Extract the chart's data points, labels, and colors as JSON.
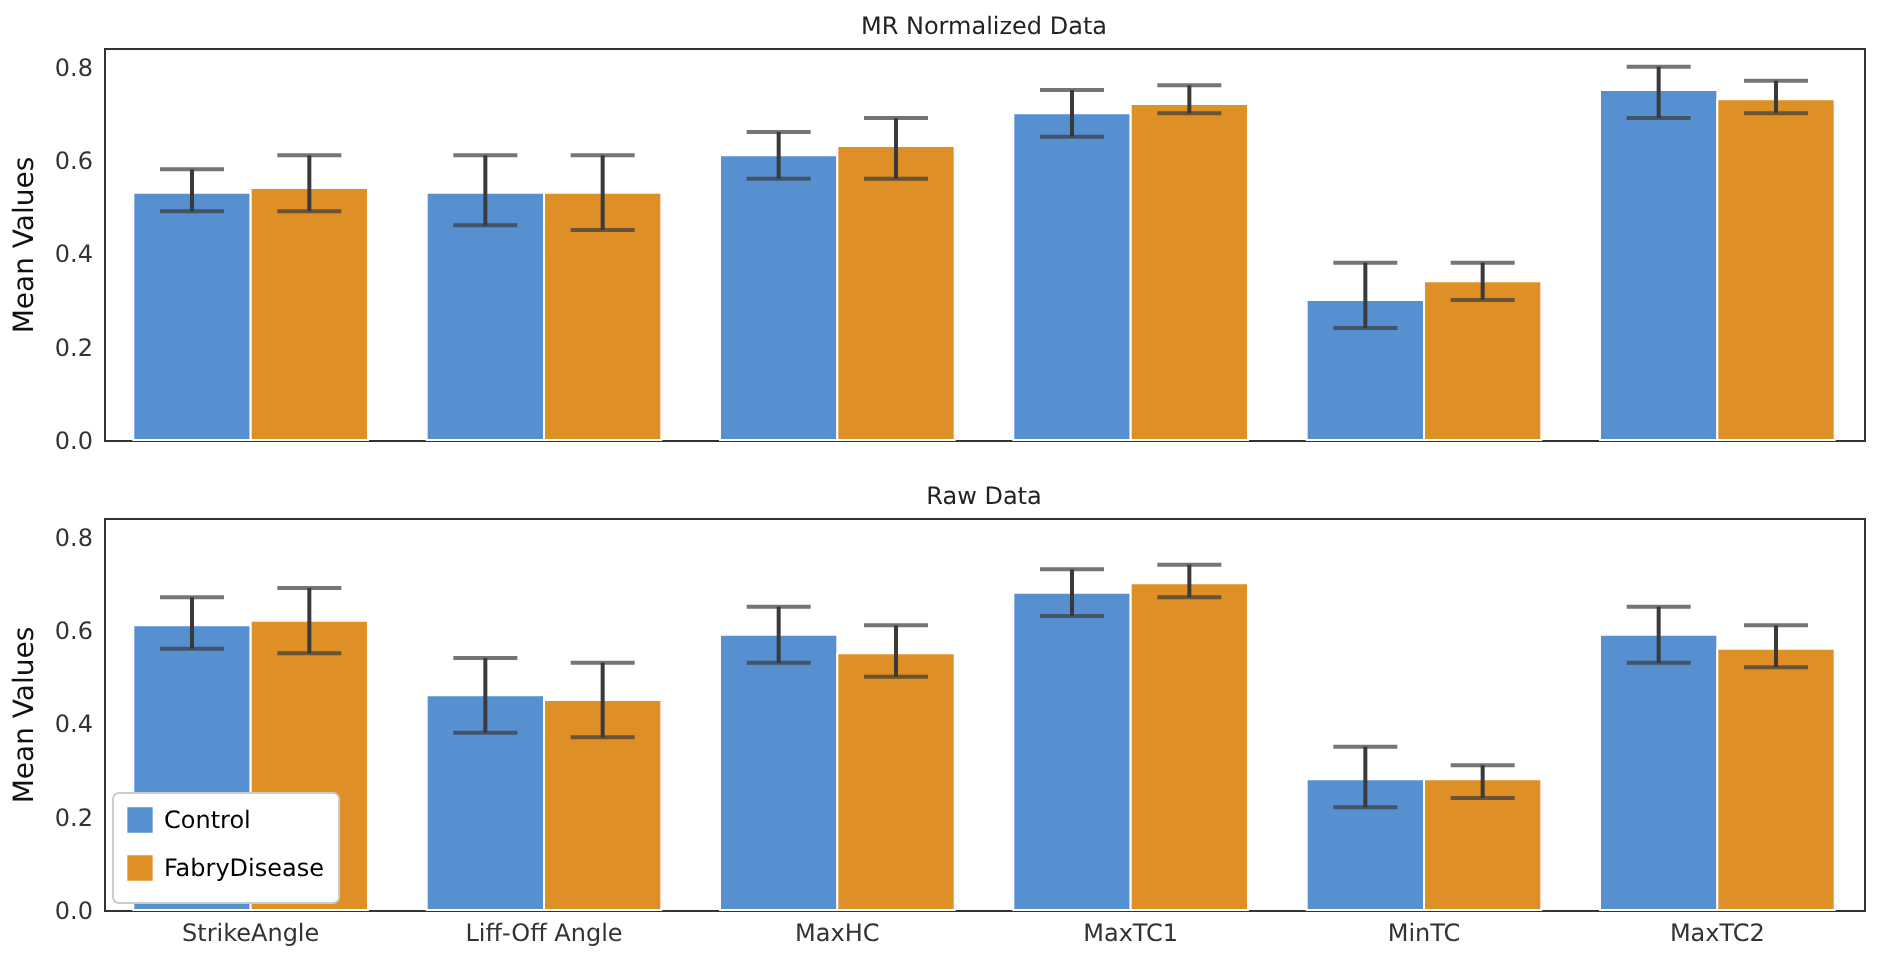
{
  "chart_data": [
    {
      "type": "bar",
      "title": "MR Normalized Data",
      "ylabel": "Mean Values",
      "categories": [
        null,
        null,
        null,
        null,
        null,
        null
      ],
      "series": [
        {
          "color": "#5690d0",
          "values": [
            0.53,
            0.53,
            0.61,
            0.7,
            0.3,
            0.75
          ],
          "errors": [
            [
              0.49,
              0.58
            ],
            [
              0.46,
              0.61
            ],
            [
              0.56,
              0.66
            ],
            [
              0.65,
              0.75
            ],
            [
              0.24,
              0.38
            ],
            [
              0.69,
              0.8
            ]
          ]
        },
        {
          "color": "#de8f26",
          "values": [
            0.54,
            0.53,
            0.63,
            0.72,
            0.34,
            0.73
          ],
          "errors": [
            [
              0.49,
              0.61
            ],
            [
              0.45,
              0.61
            ],
            [
              0.56,
              0.69
            ],
            [
              0.7,
              0.76
            ],
            [
              0.3,
              0.38
            ],
            [
              0.7,
              0.77
            ]
          ]
        }
      ],
      "ylim": [
        0,
        0.84
      ],
      "yticks": [
        {
          "value": 0,
          "label": "0.0"
        },
        0.2,
        0.4,
        0.6,
        0.8
      ],
      "tick_labels": "y"
    },
    {
      "type": "bar",
      "title": "Raw Data",
      "ylabel": "Mean Values",
      "categories": [
        "StrikeAngle",
        "Liff-Off  Angle",
        "MaxHC",
        "MaxTC1",
        "MinTC",
        "MaxTC2"
      ],
      "series": [
        {
          "name": "Control",
          "color": "#5690d0",
          "values": [
            0.61,
            0.46,
            0.59,
            0.68,
            0.28,
            0.59
          ],
          "errors": [
            [
              0.56,
              0.67
            ],
            [
              0.38,
              0.54
            ],
            [
              0.53,
              0.65
            ],
            [
              0.63,
              0.73
            ],
            [
              0.22,
              0.35
            ],
            [
              0.53,
              0.65
            ]
          ]
        },
        {
          "name": "FabryDisease",
          "color": "#de8f26",
          "values": [
            0.62,
            0.45,
            0.55,
            0.7,
            0.28,
            0.56
          ],
          "errors": [
            [
              0.55,
              0.69
            ],
            [
              0.37,
              0.53
            ],
            [
              0.5,
              0.61
            ],
            [
              0.67,
              0.74
            ],
            [
              0.24,
              0.31
            ],
            [
              0.52,
              0.61
            ]
          ]
        }
      ],
      "ylim": [
        0,
        0.84
      ],
      "yticks": [
        {
          "value": 0,
          "label": "0.0"
        },
        0.2,
        0.4,
        0.6,
        0.8
      ],
      "legend": "bottom left"
    }
  ]
}
